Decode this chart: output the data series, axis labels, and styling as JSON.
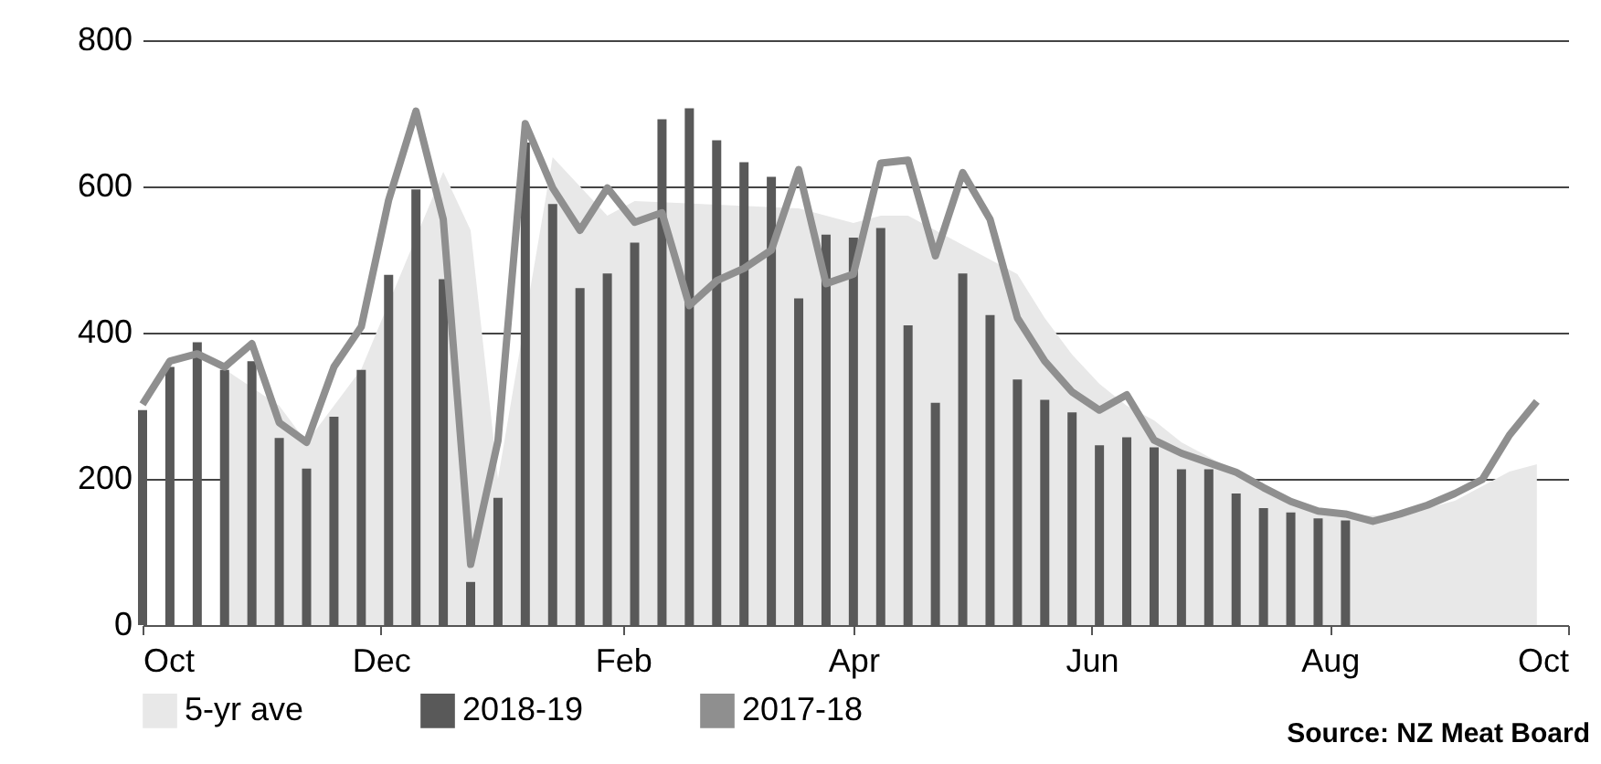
{
  "chart_data": {
    "type": "bar",
    "x": [
      "2018-10-01",
      "2018-10-08",
      "2018-10-15",
      "2018-10-22",
      "2018-10-29",
      "2018-11-05",
      "2018-11-12",
      "2018-11-19",
      "2018-11-26",
      "2018-12-03",
      "2018-12-10",
      "2018-12-17",
      "2018-12-24",
      "2018-12-31",
      "2019-01-07",
      "2019-01-14",
      "2019-01-21",
      "2019-01-28",
      "2019-02-04",
      "2019-02-11",
      "2019-02-18",
      "2019-02-25",
      "2019-03-04",
      "2019-03-11",
      "2019-03-18",
      "2019-03-25",
      "2019-04-01",
      "2019-04-08",
      "2019-04-15",
      "2019-04-22",
      "2019-04-29",
      "2019-05-06",
      "2019-05-13",
      "2019-05-20",
      "2019-05-27",
      "2019-06-03",
      "2019-06-10",
      "2019-06-17",
      "2019-06-24",
      "2019-07-01",
      "2019-07-08",
      "2019-07-15",
      "2019-07-22",
      "2019-07-29",
      "2019-08-05",
      "2019-08-12",
      "2019-08-19",
      "2019-08-26",
      "2019-09-02",
      "2019-09-09",
      "2019-09-16",
      "2019-09-23"
    ],
    "series": [
      {
        "name": "5-yr ave",
        "type": "area",
        "color": "#e8e8e8",
        "values": [
          null,
          null,
          null,
          350,
          null,
          300,
          250,
          null,
          350,
          null,
          null,
          620,
          540,
          200,
          null,
          640,
          600,
          560,
          580,
          null,
          null,
          null,
          null,
          null,
          570,
          560,
          550,
          560,
          560,
          540,
          520,
          500,
          480,
          420,
          370,
          330,
          300,
          280,
          250,
          230,
          210,
          190,
          170,
          160,
          150,
          150,
          150,
          160,
          170,
          190,
          210,
          220
        ]
      },
      {
        "name": "2018-19",
        "color": "#595959",
        "values": [
          294,
          353,
          387,
          349,
          361,
          256,
          214,
          285,
          349,
          479,
          596,
          473,
          59,
          174,
          660,
          576,
          461,
          481,
          523,
          692,
          707,
          663,
          633,
          613,
          447,
          534,
          530,
          543,
          410,
          304,
          481,
          424,
          336,
          308,
          291,
          246,
          257,
          243,
          213,
          213,
          180,
          160,
          154,
          146,
          143,
          null,
          null,
          null,
          null,
          null,
          null,
          null
        ]
      },
      {
        "name": "2017-18",
        "type": "line",
        "color": "#8f8f8f",
        "values": [
          302,
          361,
          371,
          353,
          385,
          277,
          250,
          353,
          408,
          581,
          703,
          555,
          83,
          252,
          686,
          598,
          540,
          598,
          551,
          564,
          437,
          471,
          488,
          513,
          623,
          467,
          480,
          632,
          636,
          505,
          619,
          555,
          420,
          361,
          319,
          294,
          315,
          253,
          235,
          222,
          209,
          188,
          169,
          156,
          152,
          142,
          152,
          164,
          180,
          199,
          260,
          306
        ]
      }
    ],
    "xlim": [
      "2018-10-01",
      "2019-10-01"
    ],
    "xticks": [
      {
        "value": "2018-10-01",
        "label": "Oct"
      },
      {
        "value": "2018-12-01",
        "label": "Dec"
      },
      {
        "value": "2019-02-01",
        "label": "Feb"
      },
      {
        "value": "2019-04-01",
        "label": "Apr"
      },
      {
        "value": "2019-06-01",
        "label": "Jun"
      },
      {
        "value": "2019-08-01",
        "label": "Aug"
      },
      {
        "value": "2019-10-01",
        "label": "Oct"
      }
    ],
    "ylim": [
      0,
      800
    ],
    "yticks": [
      0,
      200,
      400,
      600,
      800
    ],
    "grid": "y",
    "legend": "bottom",
    "annotations": [
      "Source: NZ Meat Board"
    ]
  }
}
